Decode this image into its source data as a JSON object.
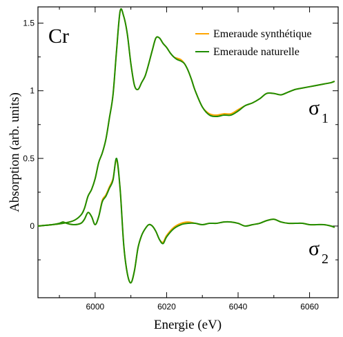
{
  "chart_data": {
    "type": "line",
    "title": "",
    "xlabel": "Energie (eV)",
    "ylabel": "Absorption (arb. units)",
    "xlim": [
      5984,
      6068
    ],
    "ylim": [
      -0.53,
      1.62
    ],
    "x_ticks": [
      6000,
      6020,
      6040,
      6060
    ],
    "x_tick_labels": [
      "6000",
      "6020",
      "6040",
      "6060"
    ],
    "y_ticks": [
      0,
      0.5,
      1,
      1.5
    ],
    "y_tick_labels": [
      "0",
      "0.5",
      "1",
      "1.5"
    ],
    "grid": false,
    "legend_position": "top-right",
    "annotations": {
      "element": "Cr",
      "sigma1_symbol": "σ",
      "sigma1_sub": "1",
      "sigma2_symbol": "σ",
      "sigma2_sub": "2"
    },
    "series": [
      {
        "name": "Emeraude synthétique",
        "color": "#ffa500",
        "group": "sigma1",
        "x": [
          5984,
          5988,
          5991,
          5994,
          5996,
          5997,
          5998,
          5999,
          6000,
          6001,
          6002,
          6003,
          6004,
          6005,
          6006,
          6007,
          6008,
          6009,
          6010,
          6011,
          6012,
          6013,
          6014,
          6015,
          6016,
          6017,
          6018,
          6019,
          6020,
          6021,
          6022,
          6023,
          6024,
          6025,
          6026,
          6027,
          6028,
          6030,
          6032,
          6034,
          6036,
          6038,
          6040,
          6042,
          6044,
          6046,
          6048,
          6050,
          6052,
          6054,
          6056,
          6058,
          6060,
          6062,
          6064,
          6066,
          6067
        ],
        "y": [
          0.0,
          0.01,
          0.02,
          0.04,
          0.08,
          0.13,
          0.22,
          0.27,
          0.35,
          0.47,
          0.54,
          0.64,
          0.8,
          0.97,
          1.3,
          1.59,
          1.55,
          1.42,
          1.2,
          1.04,
          1.01,
          1.06,
          1.11,
          1.2,
          1.3,
          1.39,
          1.39,
          1.35,
          1.32,
          1.28,
          1.25,
          1.24,
          1.23,
          1.2,
          1.15,
          1.08,
          1.0,
          0.88,
          0.83,
          0.82,
          0.83,
          0.83,
          0.86,
          0.89,
          0.91,
          0.94,
          0.98,
          0.98,
          0.97,
          0.99,
          1.01,
          1.02,
          1.03,
          1.04,
          1.05,
          1.06,
          1.07
        ]
      },
      {
        "name": "Emeraude naturelle",
        "color": "#1e8c00",
        "group": "sigma1",
        "x": [
          5984,
          5988,
          5991,
          5994,
          5996,
          5997,
          5998,
          5999,
          6000,
          6001,
          6002,
          6003,
          6004,
          6005,
          6006,
          6007,
          6008,
          6009,
          6010,
          6011,
          6012,
          6013,
          6014,
          6015,
          6016,
          6017,
          6018,
          6019,
          6020,
          6021,
          6022,
          6023,
          6024,
          6025,
          6026,
          6027,
          6028,
          6030,
          6032,
          6034,
          6036,
          6038,
          6040,
          6042,
          6044,
          6046,
          6048,
          6050,
          6052,
          6054,
          6056,
          6058,
          6060,
          6062,
          6064,
          6066,
          6067
        ],
        "y": [
          0.0,
          0.01,
          0.02,
          0.04,
          0.08,
          0.13,
          0.22,
          0.27,
          0.35,
          0.47,
          0.54,
          0.64,
          0.8,
          0.97,
          1.3,
          1.59,
          1.55,
          1.42,
          1.2,
          1.04,
          1.01,
          1.06,
          1.11,
          1.2,
          1.3,
          1.39,
          1.39,
          1.35,
          1.32,
          1.28,
          1.25,
          1.23,
          1.22,
          1.2,
          1.15,
          1.08,
          1.0,
          0.88,
          0.82,
          0.81,
          0.82,
          0.82,
          0.85,
          0.89,
          0.91,
          0.94,
          0.98,
          0.98,
          0.97,
          0.99,
          1.01,
          1.02,
          1.03,
          1.04,
          1.05,
          1.06,
          1.07
        ]
      },
      {
        "name": "Emeraude synthétique",
        "color": "#ffa500",
        "group": "sigma2",
        "x": [
          5984,
          5988,
          5990,
          5991,
          5992,
          5994,
          5996,
          5997,
          5998,
          5999,
          6000,
          6001,
          6002,
          6003,
          6004,
          6005,
          6006,
          6007,
          6008,
          6009,
          6010,
          6011,
          6012,
          6013,
          6014,
          6015,
          6016,
          6017,
          6018,
          6019,
          6020,
          6022,
          6024,
          6026,
          6028,
          6030,
          6032,
          6034,
          6036,
          6038,
          6040,
          6042,
          6044,
          6046,
          6048,
          6050,
          6052,
          6054,
          6056,
          6058,
          6060,
          6062,
          6064,
          6066,
          6067
        ],
        "y": [
          0.0,
          0.01,
          0.02,
          0.03,
          0.02,
          0.01,
          0.02,
          0.05,
          0.1,
          0.07,
          0.01,
          0.07,
          0.19,
          0.23,
          0.29,
          0.35,
          0.49,
          0.27,
          -0.14,
          -0.35,
          -0.42,
          -0.33,
          -0.16,
          -0.07,
          -0.02,
          0.01,
          0.0,
          -0.04,
          -0.1,
          -0.12,
          -0.07,
          -0.01,
          0.02,
          0.03,
          0.02,
          0.01,
          0.02,
          0.02,
          0.03,
          0.03,
          0.02,
          0.0,
          0.01,
          0.02,
          0.04,
          0.05,
          0.03,
          0.02,
          0.02,
          0.02,
          0.01,
          0.01,
          0.01,
          0.0,
          -0.01
        ]
      },
      {
        "name": "Emeraude naturelle",
        "color": "#1e8c00",
        "group": "sigma2",
        "x": [
          5984,
          5988,
          5990,
          5991,
          5992,
          5994,
          5996,
          5997,
          5998,
          5999,
          6000,
          6001,
          6002,
          6003,
          6004,
          6005,
          6006,
          6007,
          6008,
          6009,
          6010,
          6011,
          6012,
          6013,
          6014,
          6015,
          6016,
          6017,
          6018,
          6019,
          6020,
          6022,
          6024,
          6026,
          6028,
          6030,
          6032,
          6034,
          6036,
          6038,
          6040,
          6042,
          6044,
          6046,
          6048,
          6050,
          6052,
          6054,
          6056,
          6058,
          6060,
          6062,
          6064,
          6066,
          6067
        ],
        "y": [
          0.0,
          0.01,
          0.02,
          0.03,
          0.02,
          0.01,
          0.02,
          0.05,
          0.1,
          0.07,
          0.01,
          0.07,
          0.18,
          0.22,
          0.28,
          0.34,
          0.5,
          0.27,
          -0.14,
          -0.35,
          -0.42,
          -0.33,
          -0.16,
          -0.07,
          -0.02,
          0.01,
          0.0,
          -0.04,
          -0.1,
          -0.13,
          -0.08,
          -0.02,
          0.01,
          0.02,
          0.02,
          0.01,
          0.02,
          0.02,
          0.03,
          0.03,
          0.02,
          0.0,
          0.01,
          0.02,
          0.04,
          0.05,
          0.03,
          0.02,
          0.02,
          0.02,
          0.01,
          0.01,
          0.01,
          0.0,
          -0.01
        ]
      }
    ]
  }
}
